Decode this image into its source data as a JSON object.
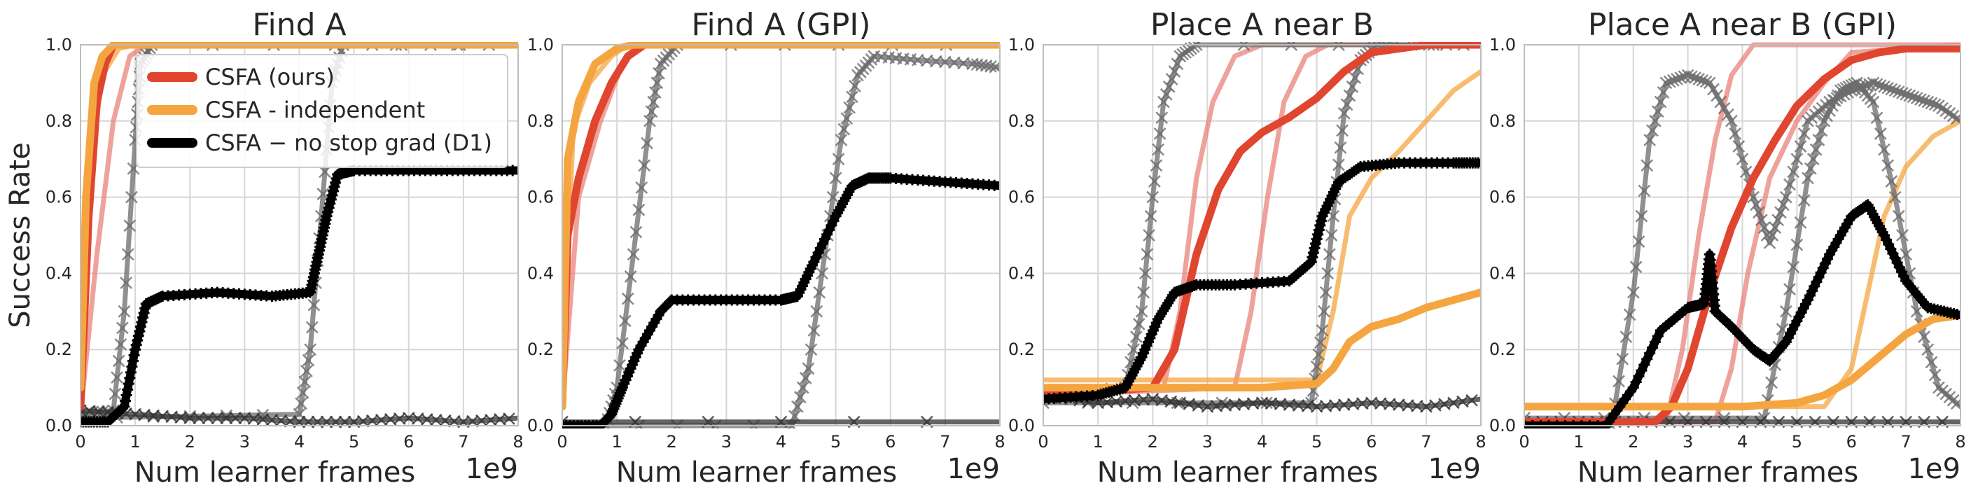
{
  "chart_data": [
    {
      "type": "line",
      "title": "Find A",
      "xlabel": "Num learner frames",
      "ylabel": "Success Rate",
      "x_multiplier": "1e9",
      "xlim": [
        0,
        8
      ],
      "ylim": [
        0,
        1
      ],
      "xticks": [
        "0",
        "1",
        "2",
        "3",
        "4",
        "5",
        "6",
        "7",
        "8"
      ],
      "yticks": [
        "0.0",
        "0.2",
        "0.4",
        "0.6",
        "0.8",
        "1.0"
      ],
      "grid": true,
      "legend_position": "top-right",
      "series": [
        {
          "name": "CSFA (ours)",
          "color": "#e04530",
          "style": "thick",
          "x": [
            0,
            0.15,
            0.3,
            0.45,
            0.6,
            0.8,
            1.0,
            8
          ],
          "y": [
            0.05,
            0.55,
            0.85,
            0.95,
            1.0,
            1.0,
            1.0,
            1.0
          ]
        },
        {
          "color": "#e8837a",
          "style": "faint",
          "x": [
            0,
            0.3,
            0.6,
            0.9,
            1.2,
            8
          ],
          "y": [
            0.03,
            0.45,
            0.8,
            0.97,
            1.0,
            1.0
          ]
        },
        {
          "name": "CSFA - independent",
          "color": "#f5a540",
          "style": "thick",
          "x": [
            0,
            0.1,
            0.25,
            0.4,
            0.6,
            0.9,
            8
          ],
          "y": [
            0.1,
            0.6,
            0.9,
            0.97,
            1.0,
            1.0,
            1.0
          ]
        },
        {
          "color": "#f5a540",
          "style": "faint",
          "x": [
            0,
            0.2,
            0.4,
            0.7,
            1.0,
            8
          ],
          "y": [
            0.05,
            0.7,
            0.92,
            0.99,
            1.0,
            1.0
          ]
        },
        {
          "name": "CSFA − no stop grad (D1)",
          "color": "#000000",
          "style": "thick",
          "x": [
            0,
            0.5,
            0.8,
            1.0,
            1.2,
            1.5,
            2.5,
            3.5,
            4.2,
            4.35,
            4.5,
            4.7,
            5.0,
            6.0,
            7.0,
            8.0
          ],
          "y": [
            0.01,
            0.01,
            0.05,
            0.2,
            0.32,
            0.34,
            0.35,
            0.34,
            0.35,
            0.45,
            0.55,
            0.66,
            0.67,
            0.67,
            0.67,
            0.67
          ]
        },
        {
          "color": "#6b6b6b",
          "style": "faint",
          "x": [
            0,
            0.6,
            0.8,
            1.0,
            1.1,
            1.3,
            8
          ],
          "y": [
            0.03,
            0.04,
            0.3,
            0.75,
            0.95,
            1.0,
            1.0
          ]
        },
        {
          "color": "#6b6b6b",
          "style": "faint",
          "x": [
            0,
            4.0,
            4.2,
            4.4,
            4.6,
            4.8,
            8
          ],
          "y": [
            0.02,
            0.03,
            0.2,
            0.55,
            0.9,
            1.0,
            1.0
          ]
        },
        {
          "color": "#333333",
          "style": "faint",
          "x": [
            0,
            1,
            2,
            3,
            4,
            5,
            6,
            7,
            8
          ],
          "y": [
            0.04,
            0.03,
            0.02,
            0.02,
            0.01,
            0.01,
            0.02,
            0.01,
            0.02
          ]
        }
      ]
    },
    {
      "type": "line",
      "title": "Find A (GPI)",
      "xlabel": "Num learner frames",
      "x_multiplier": "1e9",
      "xlim": [
        0,
        8
      ],
      "ylim": [
        0,
        1
      ],
      "xticks": [
        "0",
        "1",
        "2",
        "3",
        "4",
        "5",
        "6",
        "7",
        "8"
      ],
      "yticks": [
        "0.0",
        "0.2",
        "0.4",
        "0.6",
        "0.8",
        "1.0"
      ],
      "grid": true,
      "series": [
        {
          "color": "#e04530",
          "style": "thick",
          "x": [
            0,
            0.1,
            0.3,
            0.6,
            0.9,
            1.2,
            1.5,
            8
          ],
          "y": [
            0.05,
            0.5,
            0.65,
            0.8,
            0.9,
            0.97,
            1.0,
            1.0
          ]
        },
        {
          "color": "#e8837a",
          "style": "faint",
          "x": [
            0,
            0.3,
            0.7,
            1.1,
            1.4,
            8
          ],
          "y": [
            0.05,
            0.6,
            0.8,
            0.95,
            1.0,
            1.0
          ]
        },
        {
          "color": "#f5a540",
          "style": "thick",
          "x": [
            0,
            0.1,
            0.3,
            0.6,
            1.0,
            1.3,
            8
          ],
          "y": [
            0.05,
            0.7,
            0.85,
            0.95,
            0.99,
            1.0,
            1.0
          ]
        },
        {
          "color": "#f5a540",
          "style": "faint",
          "x": [
            0,
            0.2,
            0.5,
            0.9,
            1.2,
            8
          ],
          "y": [
            0.05,
            0.78,
            0.9,
            0.97,
            1.0,
            1.0
          ]
        },
        {
          "color": "#000000",
          "style": "thick",
          "x": [
            0,
            0.7,
            0.9,
            1.1,
            1.4,
            1.8,
            2.0,
            3.0,
            4.0,
            4.3,
            4.6,
            5.0,
            5.3,
            5.6,
            6.0,
            7.0,
            8.0
          ],
          "y": [
            0,
            0,
            0.03,
            0.1,
            0.2,
            0.3,
            0.33,
            0.33,
            0.33,
            0.34,
            0.43,
            0.55,
            0.63,
            0.65,
            0.65,
            0.64,
            0.63
          ]
        },
        {
          "color": "#6b6b6b",
          "style": "faint",
          "x": [
            0,
            0.8,
            1.0,
            1.3,
            1.6,
            1.8,
            2.1,
            8
          ],
          "y": [
            0,
            0,
            0.1,
            0.45,
            0.8,
            0.95,
            1.0,
            1.0
          ]
        },
        {
          "color": "#6b6b6b",
          "style": "faint",
          "x": [
            0,
            4.2,
            4.5,
            4.8,
            5.1,
            5.4,
            5.7,
            6.5,
            7.5,
            8.0
          ],
          "y": [
            0,
            0,
            0.15,
            0.45,
            0.75,
            0.92,
            0.97,
            0.96,
            0.95,
            0.94
          ]
        },
        {
          "color": "#333333",
          "style": "faint",
          "x": [
            0,
            8
          ],
          "y": [
            0.01,
            0.01
          ]
        }
      ]
    },
    {
      "type": "line",
      "title": "Place A near B",
      "xlabel": "Num learner frames",
      "x_multiplier": "1e9",
      "xlim": [
        0,
        8
      ],
      "ylim": [
        0,
        1
      ],
      "xticks": [
        "0",
        "1",
        "2",
        "3",
        "4",
        "5",
        "6",
        "7",
        "8"
      ],
      "yticks": [
        "0.0",
        "0.2",
        "0.4",
        "0.6",
        "0.8",
        "1.0"
      ],
      "grid": true,
      "series": [
        {
          "color": "#e04530",
          "style": "thick",
          "x": [
            0,
            2.0,
            2.4,
            2.8,
            3.2,
            3.6,
            4.0,
            4.5,
            5.0,
            5.5,
            6.0,
            7.0,
            8.0
          ],
          "y": [
            0.08,
            0.1,
            0.2,
            0.45,
            0.62,
            0.72,
            0.77,
            0.81,
            0.86,
            0.93,
            0.98,
            1.0,
            1.0
          ]
        },
        {
          "color": "#e8837a",
          "style": "faint",
          "x": [
            0,
            2.2,
            2.5,
            2.8,
            3.1,
            3.5,
            4.0,
            8
          ],
          "y": [
            0.08,
            0.1,
            0.3,
            0.65,
            0.85,
            0.97,
            1.0,
            1.0
          ]
        },
        {
          "color": "#e8837a",
          "style": "faint",
          "x": [
            0,
            3.5,
            3.8,
            4.1,
            4.4,
            4.8,
            5.2,
            8
          ],
          "y": [
            0.08,
            0.1,
            0.3,
            0.6,
            0.85,
            0.97,
            1.0,
            1.0
          ]
        },
        {
          "color": "#f5a540",
          "style": "thick",
          "x": [
            0,
            4.0,
            5.0,
            5.3,
            5.6,
            6.0,
            6.5,
            7.0,
            8.0
          ],
          "y": [
            0.1,
            0.1,
            0.11,
            0.15,
            0.22,
            0.26,
            0.28,
            0.31,
            0.35
          ]
        },
        {
          "color": "#f5a540",
          "style": "faint",
          "x": [
            0,
            5.0,
            5.3,
            5.6,
            6.0,
            6.5,
            7.0,
            7.5,
            8.0
          ],
          "y": [
            0.12,
            0.12,
            0.3,
            0.55,
            0.65,
            0.72,
            0.8,
            0.88,
            0.93
          ]
        },
        {
          "color": "#000000",
          "style": "thick",
          "x": [
            0,
            1.0,
            1.5,
            1.8,
            2.1,
            2.4,
            2.8,
            3.5,
            4.5,
            4.9,
            5.1,
            5.4,
            5.8,
            6.5,
            7.5,
            8.0
          ],
          "y": [
            0.07,
            0.08,
            0.1,
            0.18,
            0.28,
            0.35,
            0.37,
            0.37,
            0.38,
            0.43,
            0.55,
            0.64,
            0.68,
            0.69,
            0.69,
            0.69
          ]
        },
        {
          "color": "#6b6b6b",
          "style": "faint",
          "x": [
            0,
            1.5,
            1.8,
            2.0,
            2.2,
            2.5,
            2.8,
            8
          ],
          "y": [
            0.08,
            0.1,
            0.3,
            0.6,
            0.85,
            0.97,
            1.0,
            1.0
          ]
        },
        {
          "color": "#6b6b6b",
          "style": "faint",
          "x": [
            0,
            4.9,
            5.1,
            5.3,
            5.5,
            5.8,
            6.1,
            8
          ],
          "y": [
            0.06,
            0.06,
            0.25,
            0.55,
            0.82,
            0.96,
            1.0,
            1.0
          ]
        },
        {
          "color": "#333333",
          "style": "faint",
          "x": [
            0,
            1,
            2,
            3,
            4,
            5,
            6,
            7,
            8
          ],
          "y": [
            0.08,
            0.06,
            0.07,
            0.05,
            0.06,
            0.05,
            0.06,
            0.05,
            0.07
          ]
        }
      ]
    },
    {
      "type": "line",
      "title": "Place A near B (GPI)",
      "xlabel": "Num learner frames",
      "x_multiplier": "1e9",
      "xlim": [
        0,
        8
      ],
      "ylim": [
        0,
        1
      ],
      "xticks": [
        "0",
        "1",
        "2",
        "3",
        "4",
        "5",
        "6",
        "7",
        "8"
      ],
      "yticks": [
        "0.0",
        "0.2",
        "0.4",
        "0.6",
        "0.8",
        "1.0"
      ],
      "grid": true,
      "series": [
        {
          "color": "#e04530",
          "style": "thick",
          "x": [
            0,
            2.4,
            2.7,
            3.0,
            3.4,
            3.8,
            4.2,
            4.6,
            5.0,
            5.5,
            6.0,
            6.5,
            7.0,
            8.0
          ],
          "y": [
            0.01,
            0.01,
            0.05,
            0.15,
            0.35,
            0.52,
            0.65,
            0.75,
            0.84,
            0.91,
            0.96,
            0.98,
            0.99,
            0.99
          ]
        },
        {
          "color": "#e8837a",
          "style": "faint",
          "x": [
            0,
            2.6,
            2.9,
            3.2,
            3.5,
            3.8,
            4.2,
            8
          ],
          "y": [
            0.01,
            0.01,
            0.2,
            0.5,
            0.75,
            0.92,
            1.0,
            1.0
          ]
        },
        {
          "color": "#e8837a",
          "style": "faint",
          "x": [
            0,
            3.5,
            3.8,
            4.1,
            4.5,
            5.0,
            5.5,
            6.0,
            8
          ],
          "y": [
            0.01,
            0.01,
            0.15,
            0.4,
            0.65,
            0.8,
            0.9,
            0.98,
            1.0
          ]
        },
        {
          "color": "#f5a540",
          "style": "thick",
          "x": [
            0,
            4.0,
            5.0,
            5.5,
            6.0,
            6.5,
            7.0,
            7.5,
            8.0
          ],
          "y": [
            0.05,
            0.05,
            0.06,
            0.08,
            0.12,
            0.18,
            0.24,
            0.28,
            0.29
          ]
        },
        {
          "color": "#f5a540",
          "style": "faint",
          "x": [
            0,
            5.5,
            6.0,
            6.3,
            6.6,
            7.0,
            7.5,
            8.0
          ],
          "y": [
            0.05,
            0.05,
            0.15,
            0.35,
            0.55,
            0.68,
            0.76,
            0.8
          ]
        },
        {
          "color": "#000000",
          "style": "thick",
          "x": [
            0,
            1.5,
            2.0,
            2.5,
            3.0,
            3.3,
            3.4,
            3.5,
            3.8,
            4.2,
            4.5,
            4.8,
            5.2,
            5.6,
            6.0,
            6.3,
            6.6,
            7.0,
            7.4,
            8.0
          ],
          "y": [
            0.0,
            0.0,
            0.1,
            0.25,
            0.31,
            0.32,
            0.45,
            0.3,
            0.26,
            0.2,
            0.17,
            0.22,
            0.33,
            0.45,
            0.55,
            0.58,
            0.5,
            0.38,
            0.31,
            0.29
          ]
        },
        {
          "color": "#6b6b6b",
          "style": "faint",
          "x": [
            0,
            1.6,
            2.0,
            2.3,
            2.6,
            3.0,
            3.4,
            3.8,
            4.2,
            4.5,
            4.8,
            5.2,
            5.6,
            6.0,
            6.4,
            6.8,
            7.2,
            7.6,
            8.0
          ],
          "y": [
            0.0,
            0.0,
            0.35,
            0.75,
            0.9,
            0.92,
            0.9,
            0.8,
            0.6,
            0.48,
            0.6,
            0.8,
            0.85,
            0.88,
            0.9,
            0.88,
            0.86,
            0.84,
            0.8
          ]
        },
        {
          "color": "#6b6b6b",
          "style": "faint",
          "x": [
            0,
            4.4,
            4.8,
            5.2,
            5.5,
            5.8,
            6.1,
            6.4,
            6.8,
            7.2,
            7.6,
            8.0
          ],
          "y": [
            0.02,
            0.02,
            0.3,
            0.65,
            0.8,
            0.88,
            0.9,
            0.85,
            0.6,
            0.3,
            0.1,
            0.05
          ]
        },
        {
          "color": "#333333",
          "style": "faint",
          "x": [
            0,
            2,
            4,
            6,
            8
          ],
          "y": [
            0.01,
            0.01,
            0.01,
            0.01,
            0.01
          ]
        }
      ]
    }
  ]
}
